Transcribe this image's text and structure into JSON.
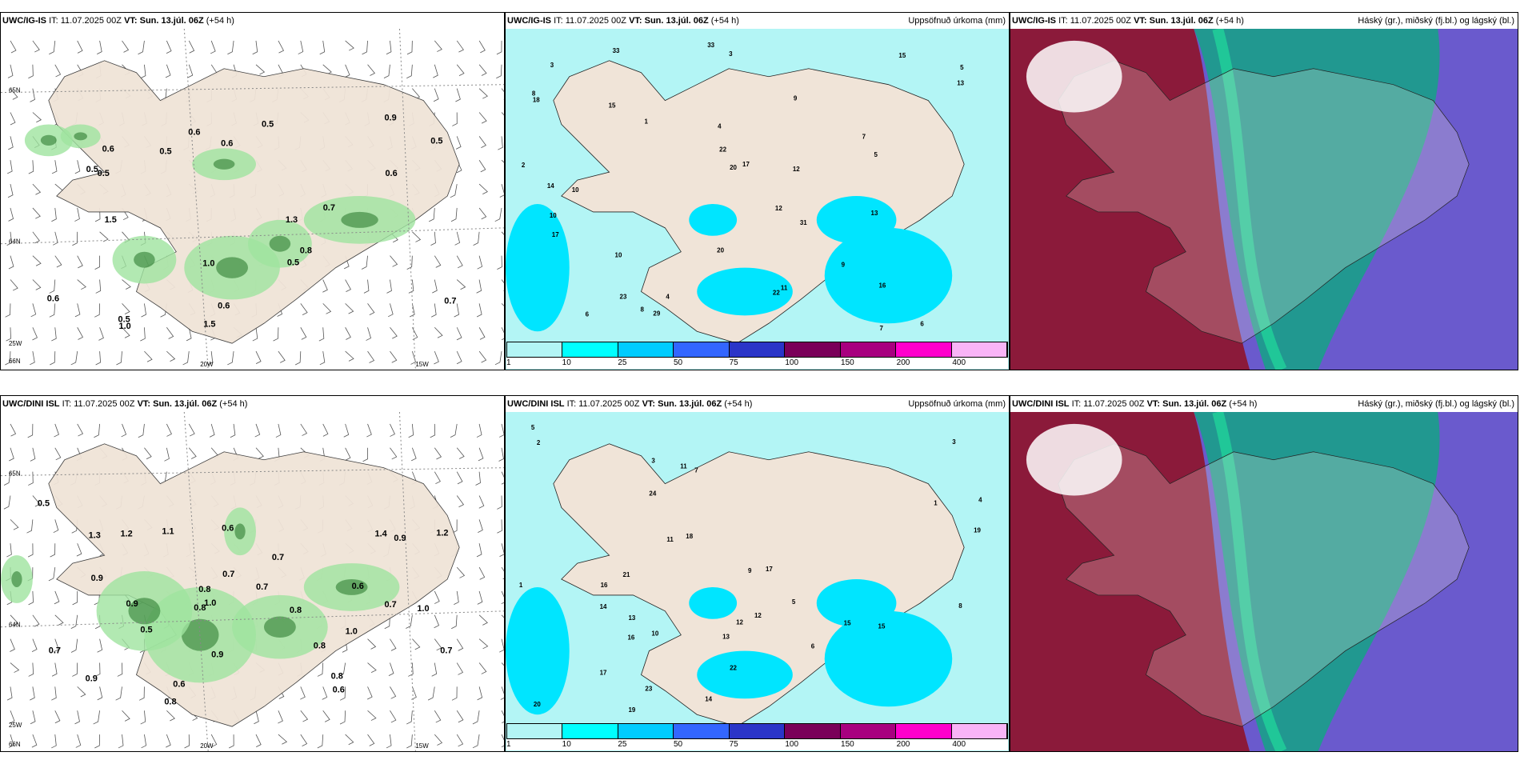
{
  "panels": [
    {
      "id": "ig-wind",
      "model": "UWC/IG-IS",
      "it_label": "IT:",
      "it": "11.07.2025 00Z",
      "vt_label": "VT:",
      "vt": "Sun. 13.júl. 06Z",
      "lead": "(+54 h)",
      "right_title": "",
      "axis_labels": [
        "20W",
        "15W",
        "64N",
        "65N",
        "66N",
        "25W"
      ],
      "values": [
        "0.7",
        "1.5",
        "1.3",
        "0.6",
        "0.5",
        "0.5",
        "0.5",
        "0.5",
        "0.6",
        "1.0",
        "1.0",
        "1.5",
        "0.9",
        "0.8",
        "0.7",
        "0.5",
        "0.6",
        "0.6",
        "0.6",
        "0.5",
        "0.5",
        "0.6"
      ]
    },
    {
      "id": "ig-precip",
      "model": "UWC/IG-IS",
      "it_label": "IT:",
      "it": "11.07.2025 00Z",
      "vt_label": "VT:",
      "vt": "Sun. 13.júl. 06Z",
      "lead": "(+54 h)",
      "right_title": "Uppsöfnuð úrkoma (mm)",
      "values": [
        "2",
        "3",
        "7",
        "5",
        "8",
        "6",
        "10",
        "9",
        "4",
        "15",
        "17",
        "13",
        "33",
        "18",
        "15",
        "10",
        "11",
        "14",
        "12",
        "20",
        "9",
        "16",
        "13",
        "22",
        "23",
        "20",
        "31",
        "33",
        "29",
        "22",
        "10",
        "7",
        "12",
        "6",
        "8",
        "17",
        "5",
        "3",
        "4",
        "1"
      ]
    },
    {
      "id": "ig-cloud",
      "model": "UWC/IG-IS",
      "it_label": "IT:",
      "it": "11.07.2025 00Z",
      "vt_label": "VT:",
      "vt": "Sun. 13.júl. 06Z",
      "lead": "(+54 h)",
      "right_title": "Háský (gr.), miðský (fj.bl.) og lágský (bl.)"
    },
    {
      "id": "dini-wind",
      "model": "UWC/DINI ISL",
      "it_label": "IT:",
      "it": "11.07.2025 00Z",
      "vt_label": "VT:",
      "vt": "Sun. 13.júl. 06Z",
      "lead": "(+54 h)",
      "right_title": "",
      "axis_labels": [
        "20W",
        "15W",
        "64N",
        "65N",
        "66N",
        "25W"
      ],
      "values": [
        "0.7",
        "0.7",
        "0.9",
        "0.8",
        "0.7",
        "0.6",
        "1.2",
        "0.8",
        "0.8",
        "0.5",
        "0.6",
        "1.0",
        "0.9",
        "0.6",
        "0.8",
        "0.9",
        "1.2",
        "0.7",
        "0.8",
        "1.3",
        "1.1",
        "0.7",
        "1.4",
        "1.0",
        "0.9",
        "0.8",
        "1.0",
        "0.6",
        "0.7",
        "0.9",
        "0.5"
      ]
    },
    {
      "id": "dini-precip",
      "model": "UWC/DINI ISL",
      "it_label": "IT:",
      "it": "11.07.2025 00Z",
      "vt_label": "VT:",
      "vt": "Sun. 13.júl. 06Z",
      "lead": "(+54 h)",
      "right_title": "Uppsöfnuð úrkoma (mm)",
      "values": [
        "2",
        "5",
        "1",
        "3",
        "4",
        "6",
        "7",
        "10",
        "20",
        "15",
        "16",
        "17",
        "19",
        "14",
        "12",
        "11",
        "13",
        "17",
        "24",
        "18",
        "19",
        "22",
        "23",
        "21",
        "16",
        "12",
        "13",
        "15",
        "14",
        "11",
        "5",
        "3",
        "1",
        "8",
        "9"
      ]
    },
    {
      "id": "dini-cloud",
      "model": "UWC/DINI ISL",
      "it_label": "IT:",
      "it": "11.07.2025 00Z",
      "vt_label": "VT:",
      "vt": "Sun. 13.júl. 06Z",
      "lead": "(+54 h)",
      "right_title": "Háský (gr.), miðský (fj.bl.) og lágský (bl.)"
    }
  ],
  "colorbar": {
    "labels": [
      "1",
      "10",
      "25",
      "50",
      "75",
      "100",
      "150",
      "200",
      "400"
    ],
    "colors": [
      "#b3f5f5",
      "#00ffff",
      "#00ccff",
      "#3366ff",
      "#2b35c8",
      "#7a0059",
      "#a8007f",
      "#ff00cc",
      "#f9b4f7"
    ]
  },
  "colors": {
    "land": "#f0e4d8",
    "wind_green": "#9fe39f",
    "precip_bg": "#b3f5f5",
    "high_cloud": "#1a9e8a",
    "mid_cloud": "#6a5acd",
    "low_cloud": "#8b1a3a"
  }
}
